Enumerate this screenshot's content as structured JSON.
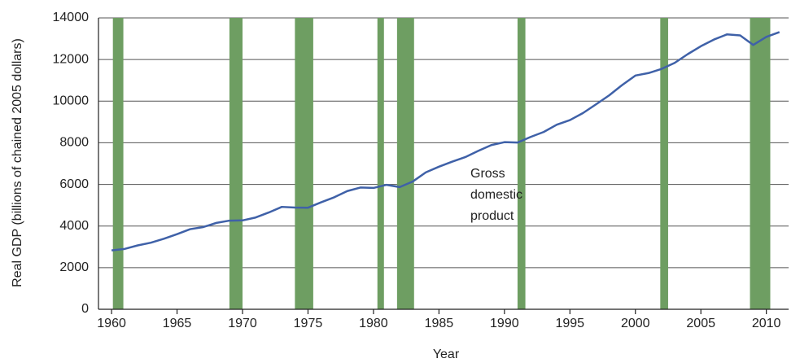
{
  "chart_data": {
    "type": "line",
    "x_label": "Year",
    "y_label": "Real GDP (billions of chained 2005 dollars)",
    "annotation": [
      "Gross",
      "domestic",
      "product"
    ],
    "x": [
      1960,
      1961,
      1962,
      1963,
      1964,
      1965,
      1966,
      1967,
      1968,
      1969,
      1970,
      1971,
      1972,
      1973,
      1974,
      1975,
      1976,
      1977,
      1978,
      1979,
      1980,
      1981,
      1982,
      1983,
      1984,
      1985,
      1986,
      1987,
      1988,
      1989,
      1990,
      1991,
      1992,
      1993,
      1994,
      1995,
      1996,
      1997,
      1998,
      1999,
      2000,
      2001,
      2002,
      2003,
      2004,
      2005,
      2006,
      2007,
      2008,
      2009,
      2010,
      2011
    ],
    "series": [
      {
        "color": "#3f61a8",
        "values": [
          2830,
          2900,
          3070,
          3200,
          3390,
          3610,
          3850,
          3950,
          4150,
          4260,
          4270,
          4410,
          4650,
          4920,
          4890,
          4880,
          5140,
          5380,
          5680,
          5850,
          5830,
          5980,
          5870,
          6140,
          6580,
          6850,
          7090,
          7310,
          7610,
          7890,
          8030,
          8010,
          8280,
          8520,
          8870,
          9090,
          9430,
          9850,
          10280,
          10780,
          11230,
          11350,
          11550,
          11840,
          12260,
          12640,
          12960,
          13210,
          13160,
          12700,
          13090,
          13320
        ]
      }
    ],
    "shaded_periods": [
      [
        1960.1,
        1960.9
      ],
      [
        1969.0,
        1970.0
      ],
      [
        1974.0,
        1975.4
      ],
      [
        1980.3,
        1980.8
      ],
      [
        1981.8,
        1983.1
      ],
      [
        1991.0,
        1991.6
      ],
      [
        2001.9,
        2002.5
      ],
      [
        2008.75,
        2010.3
      ]
    ],
    "shade_color": "#6e9e62",
    "xlim": [
      1959,
      2011.7
    ],
    "ylim": [
      0,
      14000
    ],
    "xticks": [
      1960,
      1965,
      1970,
      1975,
      1980,
      1985,
      1990,
      1995,
      2000,
      2005,
      2010
    ],
    "yticks": [
      0,
      2000,
      4000,
      6000,
      8000,
      10000,
      12000,
      14000
    ],
    "grid": true
  }
}
